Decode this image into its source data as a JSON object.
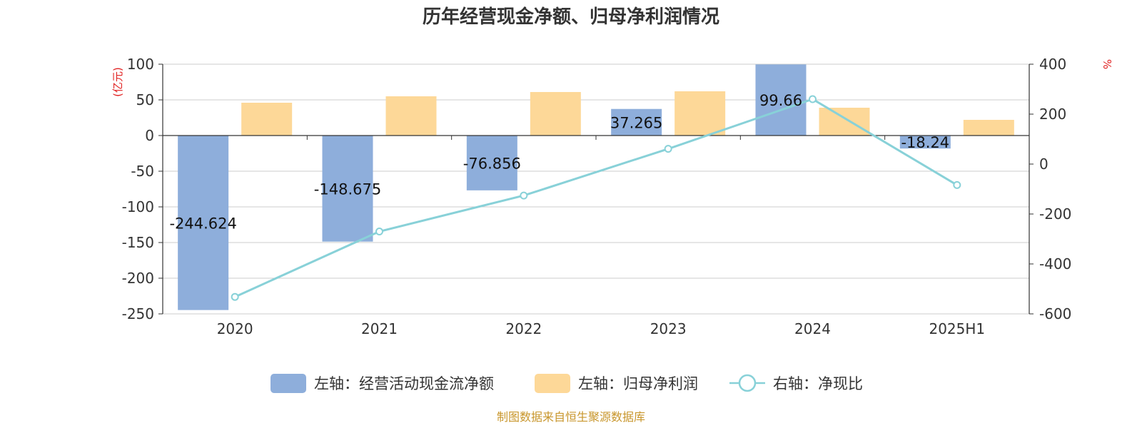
{
  "chart_data": {
    "type": "bar",
    "title": "历年经营现金净额、归母净利润情况",
    "categories": [
      "2020",
      "2021",
      "2022",
      "2023",
      "2024",
      "2025H1"
    ],
    "left_axis": {
      "unit": "(亿元)",
      "ylim": [
        -250,
        100
      ],
      "ticks": [
        100,
        50,
        0,
        -50,
        -100,
        -150,
        -200,
        -250
      ]
    },
    "right_axis": {
      "unit": "%",
      "ylim": [
        -600,
        400
      ],
      "ticks": [
        400,
        200,
        0,
        -200,
        -400,
        -600
      ]
    },
    "series": [
      {
        "name": "左轴：经营活动现金流净额",
        "type": "bar",
        "axis": "left",
        "color": "#8eaedb",
        "values": [
          -244.624,
          -148.675,
          -76.856,
          37.265,
          99.66,
          -18.24
        ],
        "labels": [
          "-244.624",
          "-148.675",
          "-76.856",
          "37.265",
          "99.66",
          "-18.24"
        ]
      },
      {
        "name": "左轴：归母净利润",
        "type": "bar",
        "axis": "left",
        "color": "#fdd898",
        "values": [
          46,
          55,
          61,
          62,
          39,
          22
        ]
      },
      {
        "name": "右轴：净现比",
        "type": "line",
        "axis": "right",
        "color": "#88d1d8",
        "values": [
          -532,
          -270,
          -126,
          61,
          260,
          -84
        ]
      }
    ],
    "grid": true,
    "legend_position": "bottom"
  },
  "source_note": "制图数据来自恒生聚源数据库"
}
